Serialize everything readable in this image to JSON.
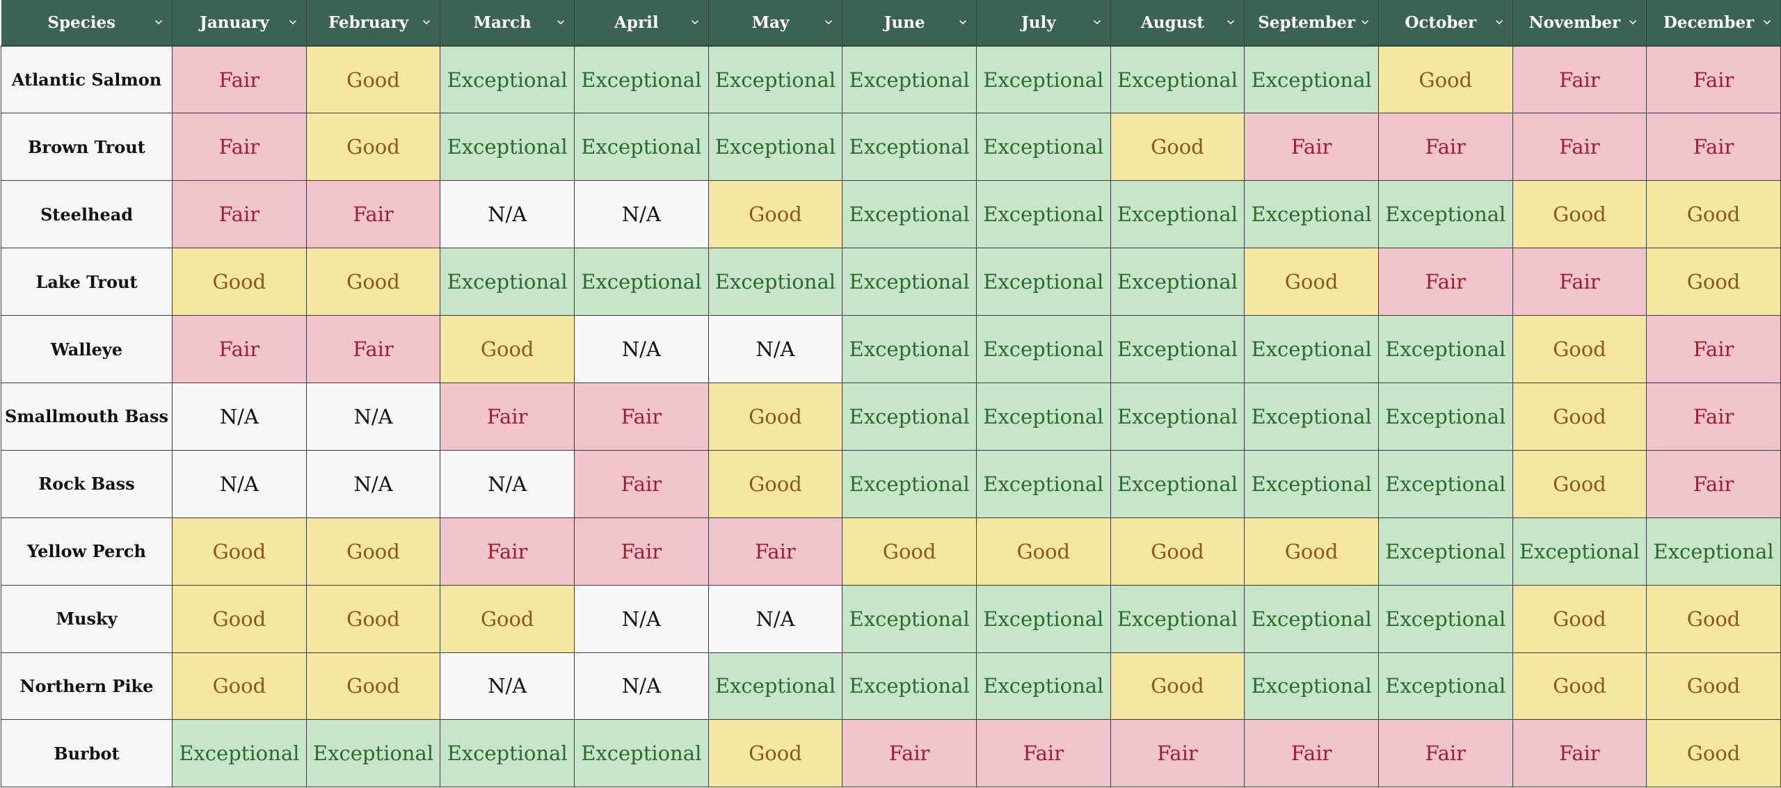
{
  "table": {
    "columns": [
      {
        "label": "Species",
        "filter_icon": "chevron-down-icon"
      },
      {
        "label": "January",
        "filter_icon": "chevron-down-icon"
      },
      {
        "label": "February",
        "filter_icon": "chevron-down-icon"
      },
      {
        "label": "March",
        "filter_icon": "chevron-down-icon"
      },
      {
        "label": "April",
        "filter_icon": "chevron-down-icon"
      },
      {
        "label": "May",
        "filter_icon": "chevron-down-icon"
      },
      {
        "label": "June",
        "filter_icon": "chevron-down-icon"
      },
      {
        "label": "July",
        "filter_icon": "chevron-down-icon"
      },
      {
        "label": "August",
        "filter_icon": "chevron-down-icon"
      },
      {
        "label": "September",
        "filter_icon": "chevron-down-icon"
      },
      {
        "label": "October",
        "filter_icon": "chevron-down-icon"
      },
      {
        "label": "November",
        "filter_icon": "chevron-down-icon"
      },
      {
        "label": "December",
        "filter_icon": "chevron-down-icon"
      }
    ],
    "rating_colors": {
      "Exceptional": {
        "bg": "#c7e6c9",
        "fg": "#2a6a2d"
      },
      "Good": {
        "bg": "#f5e6a2",
        "fg": "#8a5a14"
      },
      "Fair": {
        "bg": "#f2c4cb",
        "fg": "#a11d2f"
      },
      "N/A": {
        "bg": "#f8f8f8",
        "fg": "#111111"
      }
    },
    "header_color": "#3c6350",
    "rows": [
      {
        "species": "Atlantic Salmon",
        "months": [
          "Fair",
          "Good",
          "Exceptional",
          "Exceptional",
          "Exceptional",
          "Exceptional",
          "Exceptional",
          "Exceptional",
          "Exceptional",
          "Good",
          "Fair",
          "Fair"
        ]
      },
      {
        "species": "Brown Trout",
        "months": [
          "Fair",
          "Good",
          "Exceptional",
          "Exceptional",
          "Exceptional",
          "Exceptional",
          "Exceptional",
          "Good",
          "Fair",
          "Fair",
          "Fair",
          "Fair"
        ]
      },
      {
        "species": "Steelhead",
        "months": [
          "Fair",
          "Fair",
          "N/A",
          "N/A",
          "Good",
          "Exceptional",
          "Exceptional",
          "Exceptional",
          "Exceptional",
          "Exceptional",
          "Good",
          "Good"
        ]
      },
      {
        "species": "Lake Trout",
        "months": [
          "Good",
          "Good",
          "Exceptional",
          "Exceptional",
          "Exceptional",
          "Exceptional",
          "Exceptional",
          "Exceptional",
          "Good",
          "Fair",
          "Fair",
          "Good"
        ]
      },
      {
        "species": "Walleye",
        "months": [
          "Fair",
          "Fair",
          "Good",
          "N/A",
          "N/A",
          "Exceptional",
          "Exceptional",
          "Exceptional",
          "Exceptional",
          "Exceptional",
          "Good",
          "Fair"
        ]
      },
      {
        "species": "Smallmouth Bass",
        "months": [
          "N/A",
          "N/A",
          "Fair",
          "Fair",
          "Good",
          "Exceptional",
          "Exceptional",
          "Exceptional",
          "Exceptional",
          "Exceptional",
          "Good",
          "Fair"
        ]
      },
      {
        "species": "Rock Bass",
        "months": [
          "N/A",
          "N/A",
          "N/A",
          "Fair",
          "Good",
          "Exceptional",
          "Exceptional",
          "Exceptional",
          "Exceptional",
          "Exceptional",
          "Good",
          "Fair"
        ]
      },
      {
        "species": "Yellow Perch",
        "months": [
          "Good",
          "Good",
          "Fair",
          "Fair",
          "Fair",
          "Good",
          "Good",
          "Good",
          "Good",
          "Exceptional",
          "Exceptional",
          "Exceptional"
        ]
      },
      {
        "species": "Musky",
        "months": [
          "Good",
          "Good",
          "Good",
          "N/A",
          "N/A",
          "Exceptional",
          "Exceptional",
          "Exceptional",
          "Exceptional",
          "Exceptional",
          "Good",
          "Good"
        ]
      },
      {
        "species": "Northern Pike",
        "months": [
          "Good",
          "Good",
          "N/A",
          "N/A",
          "Exceptional",
          "Exceptional",
          "Exceptional",
          "Good",
          "Exceptional",
          "Exceptional",
          "Good",
          "Good"
        ]
      },
      {
        "species": "Burbot",
        "months": [
          "Exceptional",
          "Exceptional",
          "Exceptional",
          "Exceptional",
          "Good",
          "Fair",
          "Fair",
          "Fair",
          "Fair",
          "Fair",
          "Fair",
          "Good"
        ]
      }
    ]
  }
}
